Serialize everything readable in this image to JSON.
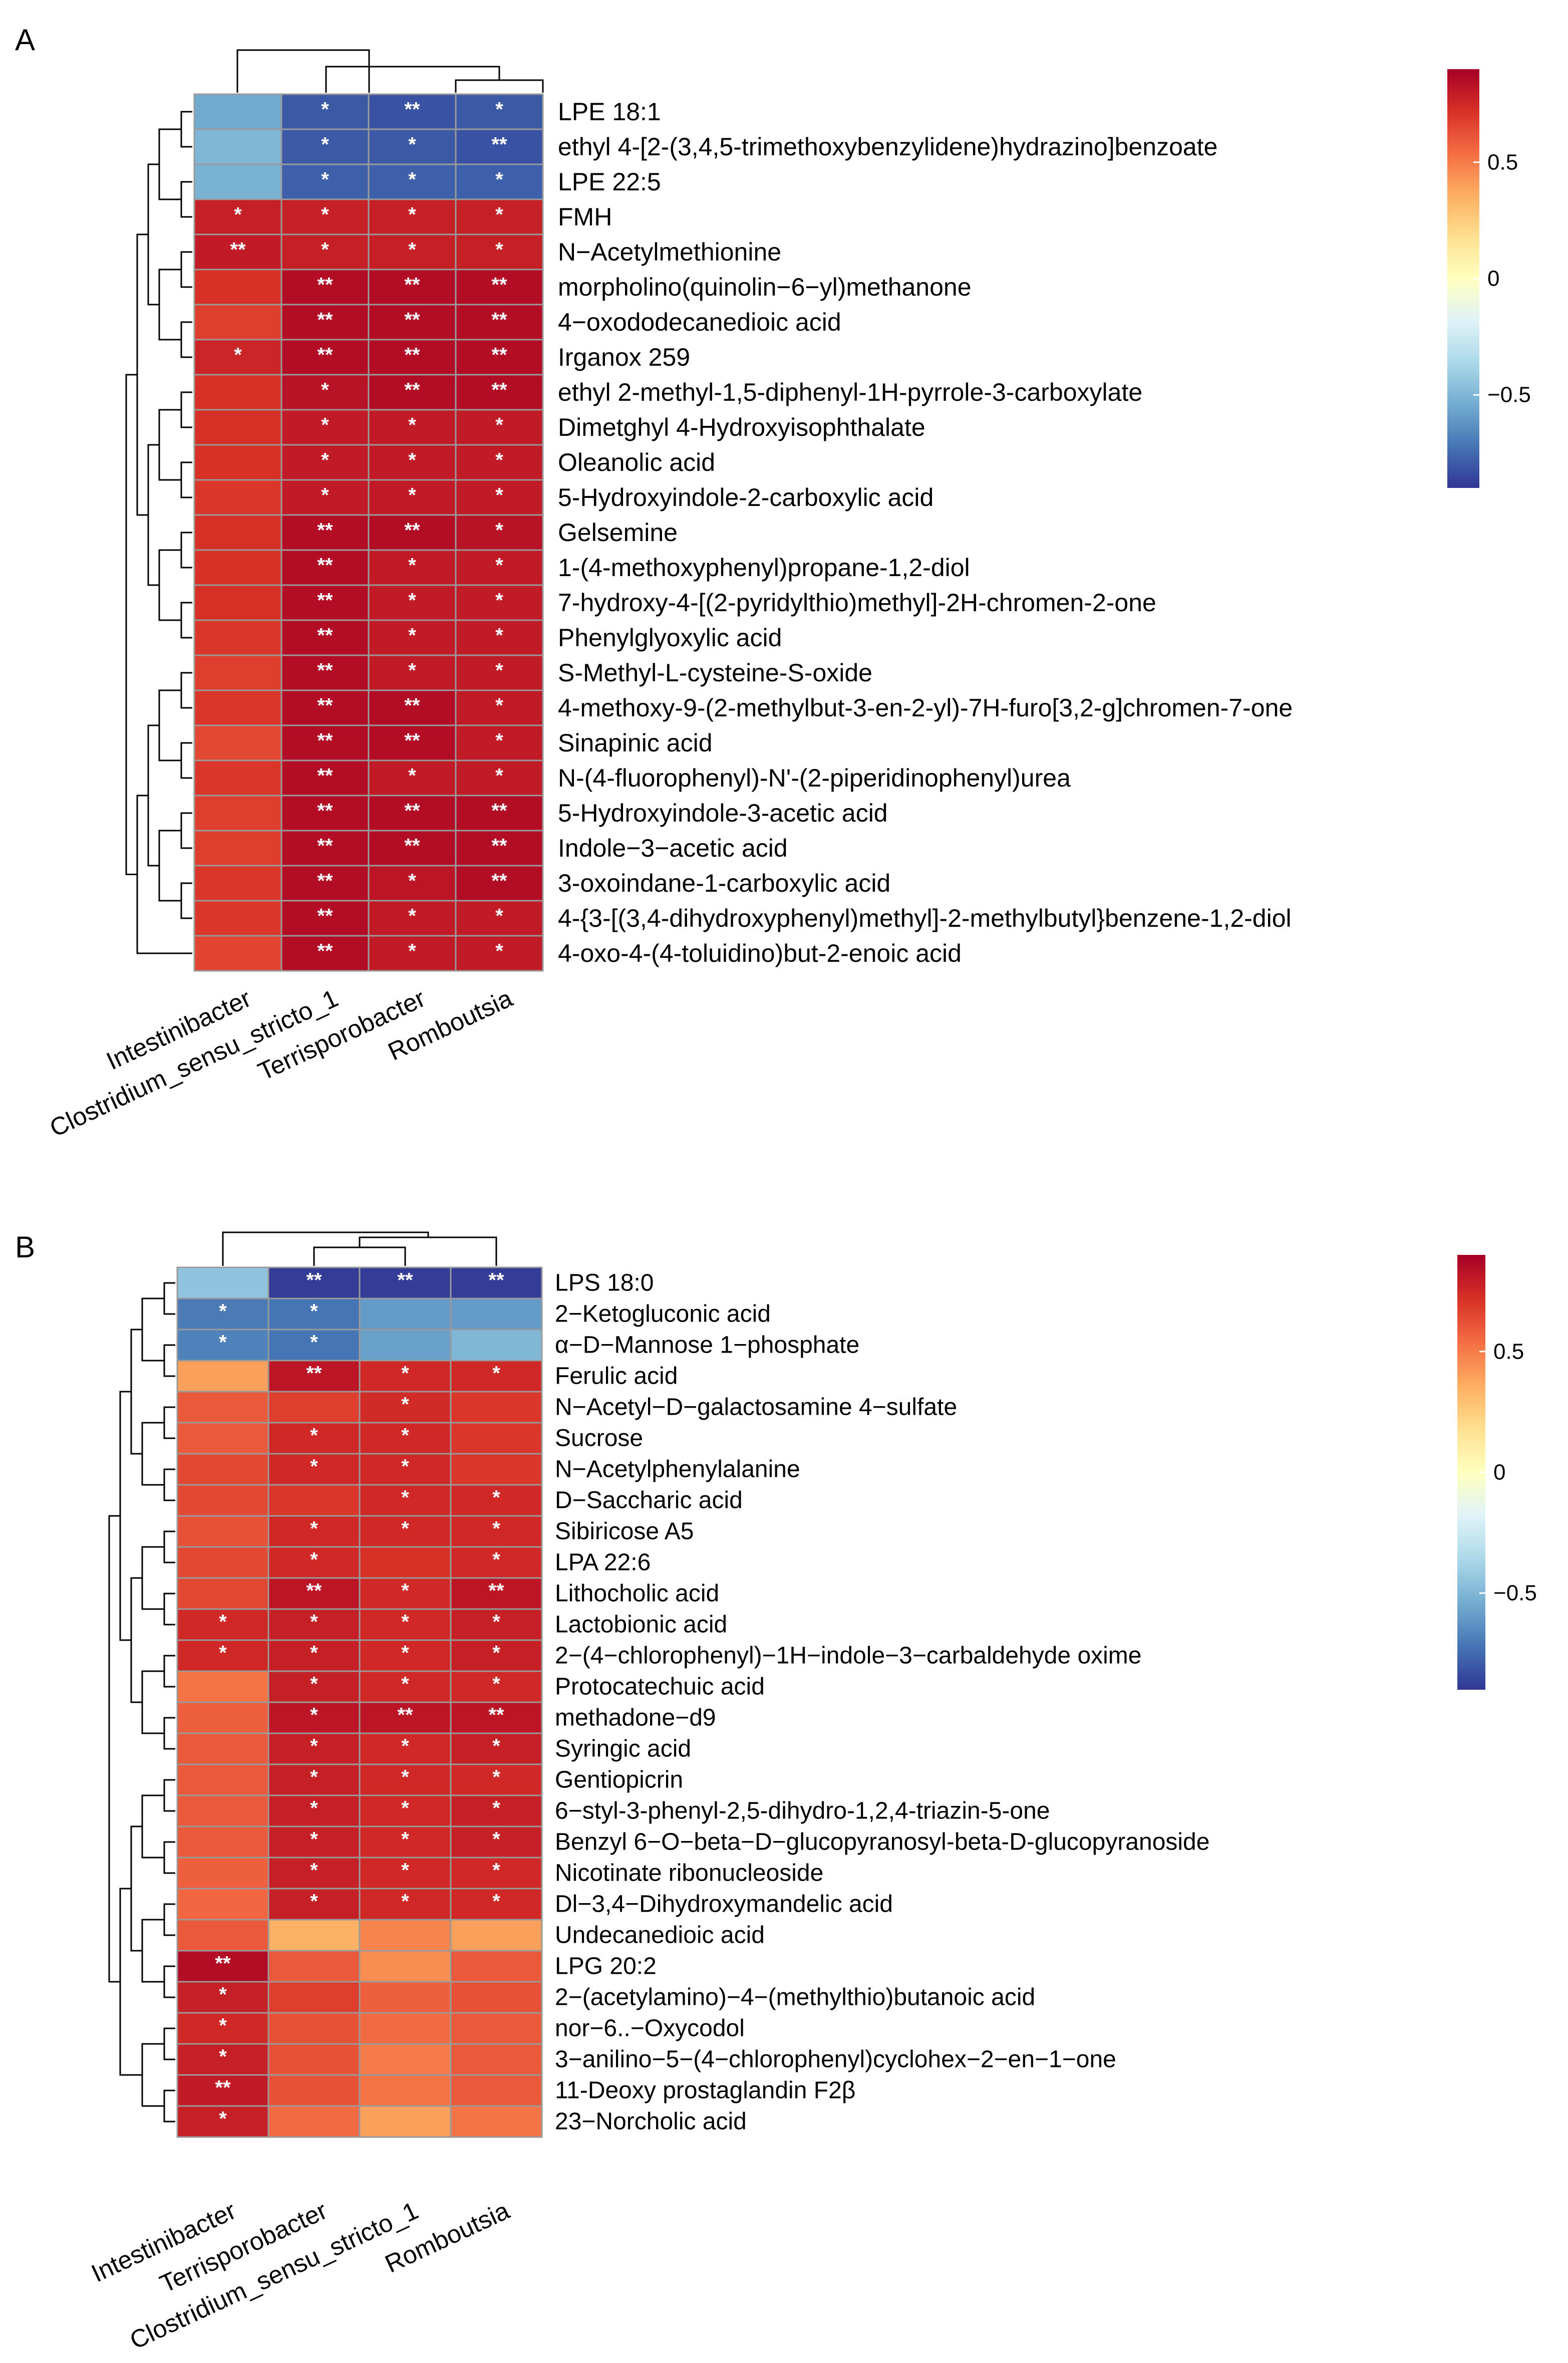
{
  "chart_data": [
    {
      "type": "heatmap",
      "panel_label": "A",
      "columns": [
        "Intestinibacter",
        "Clostridium_sensu_stricto_1",
        "Terrisporobacter",
        "Romboutsia"
      ],
      "rows": [
        "LPE 18:1",
        "ethyl 4-[2-(3,4,5-trimethoxybenzylidene)hydrazino]benzoate",
        "LPE 22:5",
        "FMH",
        "N−Acetylmethionine",
        "morpholino(quinolin−6−yl)methanone",
        "4−oxododecanedioic acid",
        "Irganox 259",
        "ethyl 2-methyl-1,5-diphenyl-1H-pyrrole-3-carboxylate",
        "Dimetghyl 4-Hydroxyisophthalate",
        "Oleanolic acid",
        "5-Hydroxyindole-2-carboxylic acid",
        "Gelsemine",
        "1-(4-methoxyphenyl)propane-1,2-diol",
        "7-hydroxy-4-[(2-pyridylthio)methyl]-2H-chromen-2-one",
        "Phenylglyoxylic acid",
        "S-Methyl-L-cysteine-S-oxide",
        "4-methoxy-9-(2-methylbut-3-en-2-yl)-7H-furo[3,2-g]chromen-7-one",
        "Sinapinic acid",
        "N-(4-fluorophenyl)-N'-(2-piperidinophenyl)urea",
        "5-Hydroxyindole-3-acetic acid",
        "Indole−3−acetic acid",
        "3-oxoindane-1-carboxylic acid",
        "4-{3-[(3,4-dihydroxyphenyl)methyl]-2-methylbutyl}benzene-1,2-diol",
        "4-oxo-4-(4-toluidino)but-2-enoic acid"
      ],
      "values": [
        [
          -0.55,
          -0.8,
          -0.82,
          -0.8
        ],
        [
          -0.5,
          -0.8,
          -0.8,
          -0.82
        ],
        [
          -0.52,
          -0.78,
          -0.78,
          -0.78
        ],
        [
          0.78,
          0.78,
          0.78,
          0.78
        ],
        [
          0.8,
          0.78,
          0.78,
          0.78
        ],
        [
          0.72,
          0.85,
          0.85,
          0.85
        ],
        [
          0.68,
          0.85,
          0.85,
          0.85
        ],
        [
          0.76,
          0.85,
          0.85,
          0.85
        ],
        [
          0.72,
          0.83,
          0.85,
          0.85
        ],
        [
          0.72,
          0.8,
          0.8,
          0.8
        ],
        [
          0.72,
          0.8,
          0.8,
          0.8
        ],
        [
          0.7,
          0.8,
          0.8,
          0.8
        ],
        [
          0.72,
          0.85,
          0.85,
          0.83
        ],
        [
          0.72,
          0.85,
          0.8,
          0.8
        ],
        [
          0.72,
          0.85,
          0.8,
          0.8
        ],
        [
          0.7,
          0.85,
          0.8,
          0.8
        ],
        [
          0.68,
          0.85,
          0.8,
          0.8
        ],
        [
          0.7,
          0.85,
          0.85,
          0.8
        ],
        [
          0.65,
          0.85,
          0.85,
          0.8
        ],
        [
          0.7,
          0.85,
          0.8,
          0.8
        ],
        [
          0.68,
          0.85,
          0.85,
          0.85
        ],
        [
          0.68,
          0.85,
          0.85,
          0.85
        ],
        [
          0.7,
          0.85,
          0.82,
          0.85
        ],
        [
          0.7,
          0.85,
          0.8,
          0.8
        ],
        [
          0.66,
          0.85,
          0.8,
          0.8
        ]
      ],
      "significance": [
        [
          "",
          "*",
          "**",
          "*"
        ],
        [
          "",
          "*",
          "*",
          "**"
        ],
        [
          "",
          "*",
          "*",
          "*"
        ],
        [
          "*",
          "*",
          "*",
          "*"
        ],
        [
          "**",
          "*",
          "*",
          "*"
        ],
        [
          "",
          "**",
          "**",
          "**"
        ],
        [
          "",
          "**",
          "**",
          "**"
        ],
        [
          "*",
          "**",
          "**",
          "**"
        ],
        [
          "",
          "*",
          "**",
          "**"
        ],
        [
          "",
          "*",
          "*",
          "*"
        ],
        [
          "",
          "*",
          "*",
          "*"
        ],
        [
          "",
          "*",
          "*",
          "*"
        ],
        [
          "",
          "**",
          "**",
          "*"
        ],
        [
          "",
          "**",
          "*",
          "*"
        ],
        [
          "",
          "**",
          "*",
          "*"
        ],
        [
          "",
          "**",
          "*",
          "*"
        ],
        [
          "",
          "**",
          "*",
          "*"
        ],
        [
          "",
          "**",
          "**",
          "*"
        ],
        [
          "",
          "**",
          "**",
          "*"
        ],
        [
          "",
          "**",
          "*",
          "*"
        ],
        [
          "",
          "**",
          "**",
          "**"
        ],
        [
          "",
          "**",
          "**",
          "**"
        ],
        [
          "",
          "**",
          "*",
          "**"
        ],
        [
          "",
          "**",
          "*",
          "*"
        ],
        [
          "",
          "**",
          "*",
          "*"
        ]
      ],
      "color_range": [
        -0.9,
        0.9
      ],
      "legend": {
        "position": "right",
        "ticks": [
          0.5,
          0,
          -0.5
        ],
        "tick_labels": [
          "0.5",
          "0",
          "−0.5"
        ]
      }
    },
    {
      "type": "heatmap",
      "panel_label": "B",
      "columns": [
        "Intestinibacter",
        "Terrisporobacter",
        "Clostridium_sensu_stricto_1",
        "Romboutsia"
      ],
      "rows": [
        "LPS 18:0",
        "2−Ketogluconic acid",
        "α−D−Mannose 1−phosphate",
        "Ferulic acid",
        "N−Acetyl−D−galactosamine 4−sulfate",
        "Sucrose",
        "N−Acetylphenylalanine",
        "D−Saccharic acid",
        "Sibiricose A5",
        "LPA 22:6",
        "Lithocholic acid",
        "Lactobionic acid",
        "2−(4−chlorophenyl)−1H−indole−3−carbaldehyde oxime",
        "Protocatechuic acid",
        "methadone−d9",
        "Syringic acid",
        "Gentiopicrin",
        "6−styl-3-phenyl-2,5-dihydro-1,2,4-triazin-5-one",
        "Benzyl 6−O−beta−D−glucopyranosyl-beta-D-glucopyranoside",
        "Nicotinate ribonucleoside",
        "Dl−3,4−Dihydroxymandelic acid",
        "Undecanedioic acid",
        "LPG 20:2",
        "2−(acetylamino)−4−(methylthio)butanoic acid",
        "nor−6..−Oxycodol",
        "3−anilino−5−(4−chlorophenyl)cyclohex−2−en−1−one",
        "11-Deoxy prostaglandin F2β",
        "23−Norcholic acid"
      ],
      "values": [
        [
          -0.45,
          -0.88,
          -0.88,
          -0.88
        ],
        [
          -0.7,
          -0.72,
          -0.6,
          -0.6
        ],
        [
          -0.68,
          -0.72,
          -0.58,
          -0.5
        ],
        [
          0.4,
          0.82,
          0.75,
          0.75
        ],
        [
          0.6,
          0.68,
          0.74,
          0.7
        ],
        [
          0.6,
          0.75,
          0.75,
          0.7
        ],
        [
          0.65,
          0.75,
          0.75,
          0.7
        ],
        [
          0.65,
          0.7,
          0.75,
          0.75
        ],
        [
          0.62,
          0.75,
          0.75,
          0.75
        ],
        [
          0.65,
          0.75,
          0.72,
          0.75
        ],
        [
          0.65,
          0.82,
          0.75,
          0.82
        ],
        [
          0.75,
          0.78,
          0.75,
          0.78
        ],
        [
          0.75,
          0.78,
          0.75,
          0.78
        ],
        [
          0.52,
          0.78,
          0.75,
          0.75
        ],
        [
          0.58,
          0.82,
          0.82,
          0.82
        ],
        [
          0.6,
          0.78,
          0.75,
          0.78
        ],
        [
          0.6,
          0.78,
          0.75,
          0.75
        ],
        [
          0.6,
          0.78,
          0.75,
          0.78
        ],
        [
          0.6,
          0.78,
          0.75,
          0.78
        ],
        [
          0.58,
          0.78,
          0.75,
          0.75
        ],
        [
          0.56,
          0.78,
          0.75,
          0.75
        ],
        [
          0.6,
          0.35,
          0.48,
          0.4
        ],
        [
          0.85,
          0.6,
          0.45,
          0.6
        ],
        [
          0.78,
          0.68,
          0.58,
          0.62
        ],
        [
          0.75,
          0.62,
          0.55,
          0.6
        ],
        [
          0.78,
          0.62,
          0.5,
          0.6
        ],
        [
          0.8,
          0.62,
          0.52,
          0.6
        ],
        [
          0.78,
          0.55,
          0.4,
          0.52
        ]
      ],
      "significance": [
        [
          "",
          "**",
          "**",
          "**"
        ],
        [
          "*",
          "*",
          "",
          ""
        ],
        [
          "*",
          "*",
          "",
          ""
        ],
        [
          "",
          "**",
          "*",
          "*"
        ],
        [
          "",
          "",
          "*",
          ""
        ],
        [
          "",
          "*",
          "*",
          ""
        ],
        [
          "",
          "*",
          "*",
          ""
        ],
        [
          "",
          "",
          "*",
          "*"
        ],
        [
          "",
          "*",
          "*",
          "*"
        ],
        [
          "",
          "*",
          "",
          "*"
        ],
        [
          "",
          "**",
          "*",
          "**"
        ],
        [
          "*",
          "*",
          "*",
          "*"
        ],
        [
          "*",
          "*",
          "*",
          "*"
        ],
        [
          "",
          "*",
          "*",
          "*"
        ],
        [
          "",
          "*",
          "**",
          "**"
        ],
        [
          "",
          "*",
          "*",
          "*"
        ],
        [
          "",
          "*",
          "*",
          "*"
        ],
        [
          "",
          "*",
          "*",
          "*"
        ],
        [
          "",
          "*",
          "*",
          "*"
        ],
        [
          "",
          "*",
          "*",
          "*"
        ],
        [
          "",
          "*",
          "*",
          "*"
        ],
        [
          "",
          "",
          "",
          ""
        ],
        [
          "**",
          "",
          "",
          ""
        ],
        [
          "*",
          "",
          "",
          ""
        ],
        [
          "*",
          "",
          "",
          ""
        ],
        [
          "*",
          "",
          "",
          ""
        ],
        [
          "**",
          "",
          "",
          ""
        ],
        [
          "*",
          "",
          "",
          ""
        ]
      ],
      "color_range": [
        -0.9,
        0.9
      ],
      "legend": {
        "position": "right",
        "ticks": [
          0.5,
          0,
          -0.5
        ],
        "tick_labels": [
          "0.5",
          "0",
          "−0.5"
        ]
      }
    }
  ],
  "colors": {
    "scale": [
      "#313695",
      "#4575b4",
      "#74add1",
      "#abd9e9",
      "#e0f3f8",
      "#ffffbf",
      "#fee090",
      "#fdae61",
      "#f46d43",
      "#d73027",
      "#a50026"
    ],
    "cell_border": "#9a9a9a",
    "dendrogram": "#000000",
    "star": "#ffffff"
  }
}
